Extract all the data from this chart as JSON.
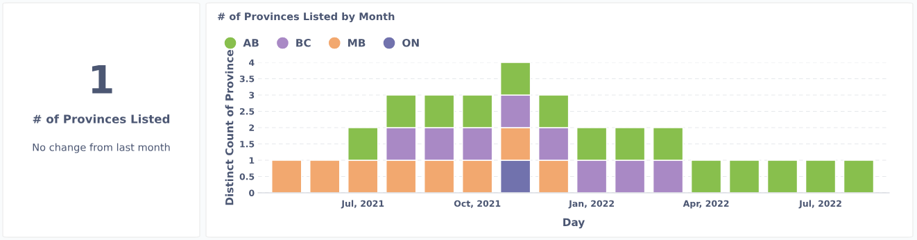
{
  "chart_data": [
    {
      "type": "other",
      "title": "1",
      "subtitle": "# of Provinces Listed",
      "annotations": [
        "No change from last month"
      ]
    },
    {
      "type": "bar",
      "title": "# of Provinces Listed by Month",
      "xlabel": "Day",
      "ylabel": "Distinct Count of Province",
      "stacked": true,
      "categories": [
        null,
        null,
        "Jul, 2021",
        null,
        null,
        "Oct, 2021",
        null,
        null,
        "Jan, 2022",
        null,
        null,
        "Apr, 2022",
        null,
        null,
        "Jul, 2022",
        null
      ],
      "series": [
        {
          "name": "ON",
          "color": "#7172ad",
          "values": [
            null,
            null,
            null,
            null,
            null,
            null,
            1,
            null,
            null,
            null,
            null,
            null,
            null,
            null,
            null,
            null
          ]
        },
        {
          "name": "MB",
          "color": "#f2a86f",
          "values": [
            1,
            1,
            1,
            1,
            1,
            1,
            1,
            1,
            null,
            null,
            null,
            null,
            null,
            null,
            null,
            null
          ]
        },
        {
          "name": "BC",
          "color": "#a989c5",
          "values": [
            null,
            null,
            null,
            1,
            1,
            1,
            1,
            1,
            1,
            1,
            1,
            null,
            null,
            null,
            null,
            null
          ]
        },
        {
          "name": "AB",
          "color": "#88bf4d",
          "values": [
            null,
            null,
            1,
            1,
            1,
            1,
            1,
            1,
            1,
            1,
            1,
            1,
            1,
            1,
            1,
            1
          ]
        }
      ],
      "ylim": [
        0,
        4
      ],
      "yticks": [
        0,
        0.5,
        1,
        1.5,
        2,
        2.5,
        3,
        3.5,
        4
      ],
      "grid": "y",
      "legend": "top left"
    }
  ]
}
